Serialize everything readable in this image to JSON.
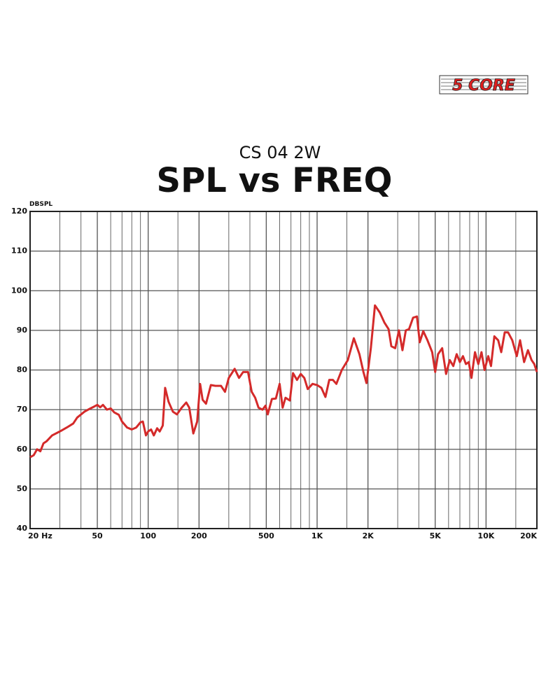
{
  "logo": "5 CORE",
  "chart_data": {
    "type": "line",
    "subtitle": "CS 04 2W",
    "title": "SPL vs FREQ",
    "ylabel": "DBSPL",
    "xscale": "log",
    "xlim": [
      20,
      20000
    ],
    "ylim": [
      40,
      120
    ],
    "xticks": [
      {
        "value": 20,
        "label": "20 Hz"
      },
      50,
      100,
      200,
      500,
      {
        "value": 1000,
        "label": "1K"
      },
      {
        "value": 2000,
        "label": "2K"
      },
      {
        "value": 5000,
        "label": "5K"
      },
      {
        "value": 10000,
        "label": "10K"
      },
      {
        "value": 20000,
        "label": "20K"
      }
    ],
    "x_minor_grid": [
      30,
      40,
      60,
      70,
      80,
      90,
      300,
      400,
      600,
      700,
      800,
      900,
      3000,
      4000,
      6000,
      7000,
      8000,
      9000,
      150,
      1500,
      15000
    ],
    "yticks": [
      40,
      50,
      60,
      70,
      80,
      90,
      100,
      110,
      120
    ],
    "grid": true,
    "color": "#d42a2a",
    "x": [
      20,
      21,
      22,
      23,
      24,
      25,
      27,
      30,
      33,
      36,
      38,
      42,
      45,
      48,
      50,
      52,
      54,
      57,
      60,
      63,
      67,
      70,
      75,
      80,
      85,
      90,
      93,
      97,
      100,
      104,
      108,
      113,
      117,
      122,
      126,
      132,
      140,
      148,
      158,
      168,
      175,
      185,
      195,
      203,
      210,
      220,
      235,
      250,
      270,
      285,
      300,
      325,
      345,
      365,
      390,
      410,
      430,
      450,
      475,
      495,
      510,
      540,
      570,
      600,
      625,
      650,
      690,
      720,
      760,
      800,
      840,
      880,
      940,
      1000,
      1060,
      1120,
      1180,
      1240,
      1300,
      1400,
      1520,
      1650,
      1780,
      1880,
      1960,
      2080,
      2200,
      2350,
      2500,
      2650,
      2750,
      2900,
      3050,
      3200,
      3350,
      3500,
      3700,
      3900,
      4050,
      4250,
      4500,
      4800,
      5000,
      5200,
      5500,
      5800,
      6100,
      6400,
      6700,
      7000,
      7300,
      7600,
      7900,
      8200,
      8600,
      9000,
      9400,
      9800,
      10300,
      10700,
      11200,
      11800,
      12300,
      12900,
      13500,
      14300,
      15200,
      15900,
      16800,
      17700,
      18600,
      19300,
      20000
    ],
    "values": [
      58,
      58.5,
      60,
      59.5,
      61.5,
      62,
      63.5,
      64.5,
      65.5,
      66.5,
      68,
      69.5,
      70.2,
      70.8,
      71.2,
      70.6,
      71.2,
      70,
      70.3,
      69.3,
      68.7,
      67,
      65.5,
      65,
      65.5,
      66.8,
      67,
      63.5,
      64.5,
      65,
      63.5,
      65.3,
      64.5,
      66,
      75.5,
      72,
      69.5,
      68.8,
      70.5,
      71.8,
      70.5,
      64,
      67,
      76.5,
      72.5,
      71.5,
      76.2,
      76,
      76,
      74.5,
      78,
      80.3,
      78,
      79.5,
      79.5,
      74.5,
      73,
      70.5,
      70,
      71,
      68.8,
      72.7,
      72.8,
      76.5,
      70.5,
      73,
      72.3,
      79.2,
      77.5,
      79,
      78,
      75.2,
      76.5,
      76.2,
      75.5,
      73.2,
      77.5,
      77.5,
      76.5,
      80,
      82.5,
      88,
      84,
      79.5,
      76.7,
      85.5,
      96.3,
      94.5,
      92,
      90.3,
      86,
      85.5,
      90,
      85,
      90,
      90.3,
      93.2,
      93.5,
      87,
      89.8,
      87.5,
      84.5,
      79.5,
      84,
      85.5,
      79,
      82.5,
      81,
      84,
      82,
      83.5,
      81.5,
      82,
      78,
      84.5,
      81.5,
      84.5,
      80,
      83.5,
      81,
      88.5,
      87.5,
      84.5,
      89.5,
      89.5,
      87.5,
      83.5,
      87.5,
      82,
      85,
      82.5,
      81.5,
      79.5
    ]
  }
}
